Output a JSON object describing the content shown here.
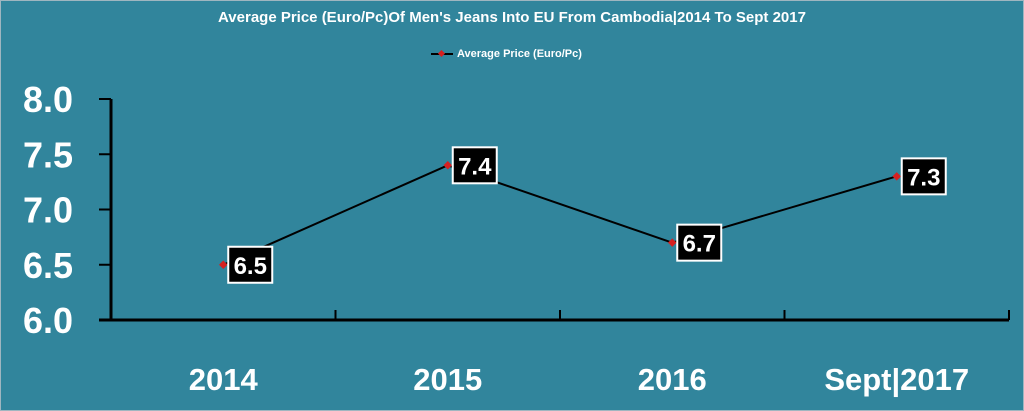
{
  "title": "Average Price (Euro/Pc)Of Men's Jeans Into EU From Cambodia|2014 To Sept 2017",
  "legend_label": "Average Price (Euro/Pc)",
  "colors": {
    "background": "#31859c",
    "line": "#000000",
    "marker": "#d62020",
    "label_box": "#000000",
    "text": "#ffffff"
  },
  "chart_data": {
    "type": "line",
    "title": "Average Price (Euro/Pc)Of Men's Jeans Into EU From Cambodia|2014 To Sept 2017",
    "categories": [
      "2014",
      "2015",
      "2016",
      "Sept|2017"
    ],
    "series": [
      {
        "name": "Average Price (Euro/Pc)",
        "values": [
          6.5,
          7.4,
          6.7,
          7.3
        ]
      }
    ],
    "data_labels": [
      "6.5",
      "7.4",
      "6.7",
      "7.3"
    ],
    "y_ticks": [
      "6.0",
      "6.5",
      "7.0",
      "7.5",
      "8.0"
    ],
    "ylim": [
      6.0,
      8.0
    ],
    "grid": false,
    "legend": "top-center"
  }
}
